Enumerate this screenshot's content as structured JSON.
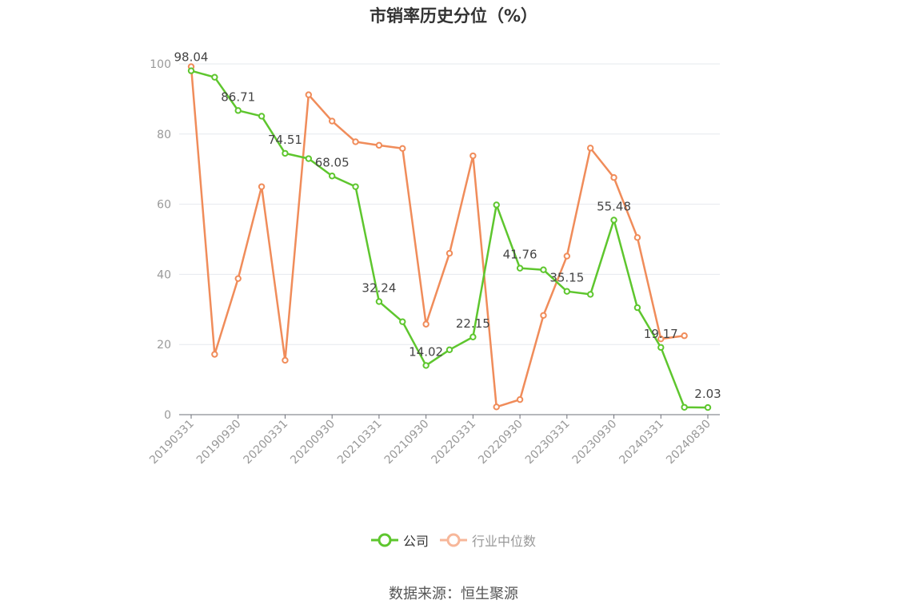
{
  "chart_data": {
    "type": "line",
    "title": "市销率历史分位（%）",
    "ylim": [
      0,
      100
    ],
    "yticks": [
      0,
      20,
      40,
      60,
      80,
      100
    ],
    "grid": true,
    "legend_placement": "bottom",
    "x_tick_labels": [
      "20190331",
      "20190930",
      "20200331",
      "20200930",
      "20210331",
      "20210930",
      "20220331",
      "20220930",
      "20230331",
      "20230930",
      "20240331",
      "20240830"
    ],
    "x": [
      "20190331",
      "20190630",
      "20190930",
      "20191231",
      "20200331",
      "20200630",
      "20200930",
      "20201231",
      "20210331",
      "20210630",
      "20210930",
      "20211231",
      "20220331",
      "20220630",
      "20220930",
      "20221231",
      "20230331",
      "20230630",
      "20230930",
      "20231231",
      "20240331",
      "20240630",
      "20240830"
    ],
    "series": [
      {
        "name": "公司",
        "color": "#5ec62e",
        "values": [
          98.04,
          96.2,
          86.71,
          85.1,
          74.51,
          73.0,
          68.05,
          65.0,
          32.24,
          26.5,
          14.02,
          18.5,
          22.15,
          59.8,
          41.76,
          41.3,
          35.15,
          34.3,
          55.48,
          30.5,
          19.17,
          2.1,
          2.03
        ],
        "labels": {
          "0": "98.04",
          "2": "86.71",
          "4": "74.51",
          "6": "68.05",
          "8": "32.24",
          "10": "14.02",
          "12": "22.15",
          "14": "41.76",
          "16": "35.15",
          "18": "55.48",
          "20": "19.17",
          "22": "2.03"
        }
      },
      {
        "name": "行业中位数",
        "color": "#f08c5a",
        "values": [
          99.2,
          17.2,
          38.8,
          65.0,
          15.5,
          91.2,
          83.7,
          77.8,
          76.8,
          75.9,
          25.8,
          46.0,
          73.8,
          2.2,
          4.3,
          28.3,
          45.2,
          76.0,
          67.6,
          50.5,
          21.6,
          22.5,
          null
        ]
      }
    ]
  },
  "legend": {
    "items": [
      {
        "label": "公司",
        "color": "#5ec62e",
        "text_color": "#333333"
      },
      {
        "label": "行业中位数",
        "color": "#f7b79a",
        "text_color": "#999999"
      }
    ]
  },
  "source": "数据来源：恒生聚源"
}
